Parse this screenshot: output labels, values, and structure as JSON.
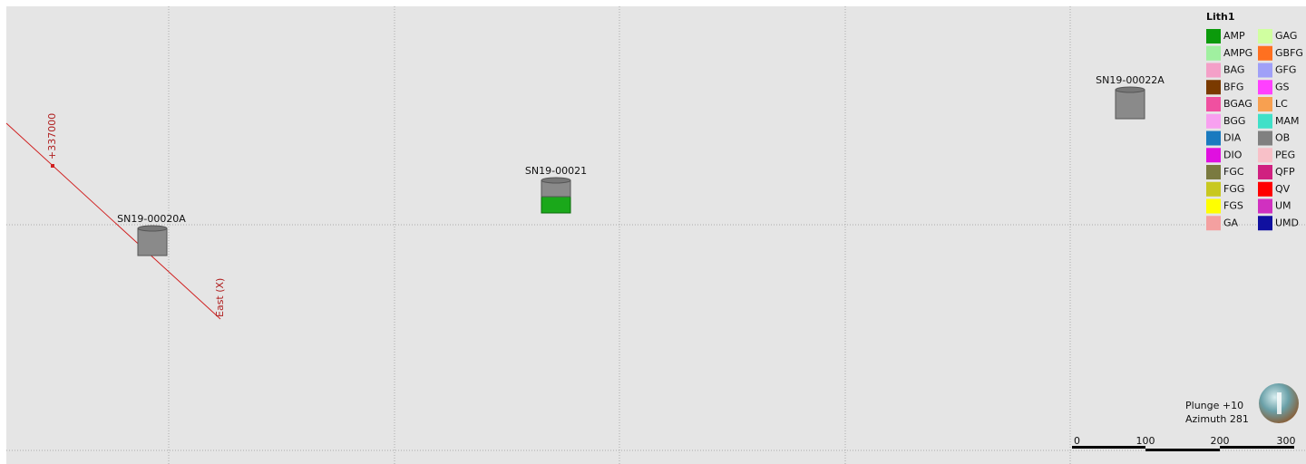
{
  "scene": {
    "axis": {
      "tick_label": "+337000",
      "name": "East (X)"
    },
    "drillholes": [
      {
        "label": "SN19-00020A"
      },
      {
        "label": "SN19-00021"
      },
      {
        "label": "SN19-00022A"
      }
    ],
    "legend": {
      "title": "Lith1",
      "items": [
        {
          "label": "AMP",
          "color": "#0b9a0b"
        },
        {
          "label": "AMPG",
          "color": "#a0f0a0"
        },
        {
          "label": "BAG",
          "color": "#f4a0c8"
        },
        {
          "label": "BFG",
          "color": "#7a3a00"
        },
        {
          "label": "BGAG",
          "color": "#f050a0"
        },
        {
          "label": "BGG",
          "color": "#f8a0f0"
        },
        {
          "label": "DIA",
          "color": "#1a7abf"
        },
        {
          "label": "DIO",
          "color": "#e010e0"
        },
        {
          "label": "FGC",
          "color": "#7a7a40"
        },
        {
          "label": "FGG",
          "color": "#c8c820"
        },
        {
          "label": "FGS",
          "color": "#ffff00"
        },
        {
          "label": "GA",
          "color": "#f4a0a0"
        },
        {
          "label": "GAG",
          "color": "#d0ffa0"
        },
        {
          "label": "GBFG",
          "color": "#ff7020"
        },
        {
          "label": "GFG",
          "color": "#a0a0f8"
        },
        {
          "label": "GS",
          "color": "#ff40ff"
        },
        {
          "label": "LC",
          "color": "#f8a050"
        },
        {
          "label": "MAM",
          "color": "#40e0c8"
        },
        {
          "label": "OB",
          "color": "#808080"
        },
        {
          "label": "PEG",
          "color": "#f8c0c8"
        },
        {
          "label": "QFP",
          "color": "#d02080"
        },
        {
          "label": "QV",
          "color": "#ff0000"
        },
        {
          "label": "UM",
          "color": "#d030c0"
        },
        {
          "label": "UMD",
          "color": "#1010a0"
        }
      ]
    },
    "orientation": {
      "plunge": "Plunge +10",
      "azimuth": "Azimuth 281"
    },
    "scale_bar": {
      "labels": [
        "0",
        "100",
        "200",
        "300"
      ]
    }
  }
}
